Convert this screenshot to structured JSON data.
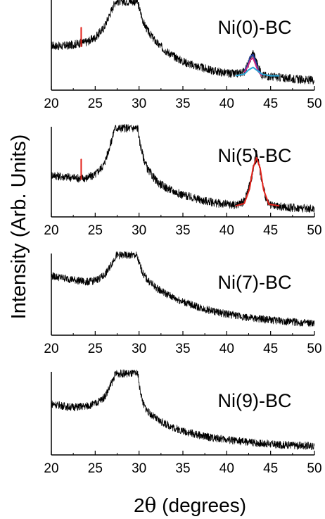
{
  "figure": {
    "ylabel": "Intensity (Arb. Units)",
    "xlabel": "2θ (degrees)",
    "xlabel_prefix": "2",
    "xlabel_theta": "θ",
    "xlabel_suffix": " (degrees)"
  },
  "chart_data": [
    {
      "type": "line",
      "title": "Ni(0)-BC",
      "xlim": [
        20,
        50
      ],
      "xticks": [
        20,
        25,
        30,
        35,
        40,
        45,
        50
      ],
      "tick_labels": [
        "20",
        "25",
        "30",
        "35",
        "40",
        "45",
        "50"
      ],
      "series": [
        {
          "color": "#000000",
          "x": [
            20,
            21,
            22,
            23,
            24,
            25,
            26,
            26.5,
            27,
            27.3,
            29.8,
            30,
            30.5,
            31,
            32,
            33,
            34,
            35,
            36,
            37,
            38,
            39,
            40,
            41,
            42,
            42.5,
            43,
            43.5,
            44,
            45,
            46,
            47,
            48,
            49,
            50
          ],
          "y": [
            0.53,
            0.52,
            0.53,
            0.55,
            0.57,
            0.62,
            0.74,
            0.86,
            0.98,
            1.05,
            1.05,
            0.98,
            0.8,
            0.7,
            0.56,
            0.47,
            0.4,
            0.34,
            0.3,
            0.27,
            0.24,
            0.22,
            0.2,
            0.19,
            0.22,
            0.32,
            0.45,
            0.3,
            0.18,
            0.16,
            0.15,
            0.14,
            0.13,
            0.12,
            0.12
          ]
        },
        {
          "color": "#e3231b",
          "x": [
            23.4,
            23.4,
            23.4,
            23.4,
            23.4
          ],
          "y": [
            0.51,
            0.74,
            0.53,
            0.72,
            0.52
          ]
        },
        {
          "color": "#1e3a9e",
          "x": [
            42.0,
            42.4,
            42.7,
            43.0,
            43.3,
            43.6,
            44.0
          ],
          "y": [
            0.23,
            0.3,
            0.4,
            0.42,
            0.34,
            0.24,
            0.18
          ]
        },
        {
          "color": "#cf2a82",
          "x": [
            42.0,
            42.4,
            42.7,
            43.0,
            43.3,
            43.6,
            44.0
          ],
          "y": [
            0.21,
            0.28,
            0.36,
            0.38,
            0.3,
            0.22,
            0.17
          ]
        },
        {
          "color": "#2aa7d8",
          "x": [
            41.0,
            42.0,
            42.5,
            43.0,
            43.5,
            44.0,
            45.0,
            46.0
          ],
          "y": [
            0.17,
            0.19,
            0.24,
            0.27,
            0.23,
            0.19,
            0.17,
            0.17
          ]
        }
      ]
    },
    {
      "type": "line",
      "title": "Ni(5)-BC",
      "xlim": [
        20,
        50
      ],
      "xticks": [
        20,
        25,
        30,
        35,
        40,
        45,
        50
      ],
      "tick_labels": [
        "20",
        "25",
        "30",
        "35",
        "40",
        "45",
        "50"
      ],
      "series": [
        {
          "color": "#000000",
          "x": [
            20,
            21,
            22,
            23,
            24,
            25,
            26,
            26.5,
            27,
            27.2,
            29.9,
            30,
            30.5,
            31,
            32,
            33,
            34,
            35,
            36,
            37,
            38,
            39,
            40,
            41,
            42,
            42.8,
            43.4,
            44.0,
            44.6,
            45,
            46,
            47,
            48,
            49,
            50
          ],
          "y": [
            0.5,
            0.48,
            0.47,
            0.46,
            0.46,
            0.5,
            0.62,
            0.78,
            0.95,
            1.05,
            1.05,
            0.92,
            0.7,
            0.56,
            0.42,
            0.35,
            0.3,
            0.26,
            0.23,
            0.2,
            0.18,
            0.16,
            0.15,
            0.14,
            0.18,
            0.45,
            0.78,
            0.42,
            0.17,
            0.13,
            0.12,
            0.11,
            0.11,
            0.1,
            0.1
          ]
        },
        {
          "color": "#e3231b",
          "x": [
            23.4,
            23.4,
            23.4,
            23.4,
            23.4
          ],
          "y": [
            0.44,
            0.68,
            0.46,
            0.66,
            0.45
          ]
        },
        {
          "color": "#e3231b",
          "x": [
            41.0,
            42.0,
            42.6,
            43.0,
            43.4,
            43.8,
            44.2,
            44.8,
            46.0
          ],
          "y": [
            0.13,
            0.16,
            0.33,
            0.58,
            0.7,
            0.58,
            0.32,
            0.15,
            0.13
          ]
        }
      ]
    },
    {
      "type": "line",
      "title": "Ni(7)-BC",
      "xlim": [
        20,
        50
      ],
      "xticks": [
        20,
        25,
        30,
        35,
        40,
        45,
        50
      ],
      "tick_labels": [
        "20",
        "25",
        "30",
        "35",
        "40",
        "45",
        "50"
      ],
      "series": [
        {
          "color": "#000000",
          "x": [
            20,
            21,
            22,
            23,
            24,
            25,
            26,
            26.5,
            27,
            27.4,
            29.7,
            30,
            30.5,
            31,
            32,
            33,
            34,
            35,
            36,
            37,
            38,
            39,
            40,
            41,
            42,
            43,
            44,
            45,
            46,
            47,
            48,
            49,
            50
          ],
          "y": [
            0.78,
            0.76,
            0.74,
            0.72,
            0.7,
            0.72,
            0.78,
            0.86,
            0.97,
            1.05,
            1.05,
            0.95,
            0.8,
            0.72,
            0.62,
            0.55,
            0.49,
            0.44,
            0.4,
            0.36,
            0.33,
            0.3,
            0.28,
            0.26,
            0.24,
            0.22,
            0.21,
            0.2,
            0.19,
            0.18,
            0.17,
            0.16,
            0.15
          ]
        }
      ]
    },
    {
      "type": "line",
      "title": "Ni(9)-BC",
      "xlim": [
        20,
        50
      ],
      "xticks": [
        20,
        25,
        30,
        35,
        40,
        45,
        50
      ],
      "tick_labels": [
        "20",
        "25",
        "30",
        "35",
        "40",
        "45",
        "50"
      ],
      "series": [
        {
          "color": "#000000",
          "x": [
            20,
            21,
            22,
            23,
            24,
            25,
            26,
            26.5,
            27,
            27.3,
            29.9,
            30,
            30.5,
            31,
            32,
            33,
            34,
            35,
            36,
            37,
            38,
            39,
            40,
            41,
            42,
            43,
            44,
            45,
            46,
            47,
            48,
            49,
            50
          ],
          "y": [
            0.66,
            0.64,
            0.62,
            0.62,
            0.63,
            0.66,
            0.74,
            0.84,
            0.96,
            1.05,
            1.05,
            0.9,
            0.65,
            0.56,
            0.46,
            0.4,
            0.35,
            0.31,
            0.28,
            0.25,
            0.23,
            0.21,
            0.2,
            0.18,
            0.17,
            0.16,
            0.15,
            0.14,
            0.13,
            0.13,
            0.12,
            0.12,
            0.11
          ]
        }
      ]
    }
  ]
}
